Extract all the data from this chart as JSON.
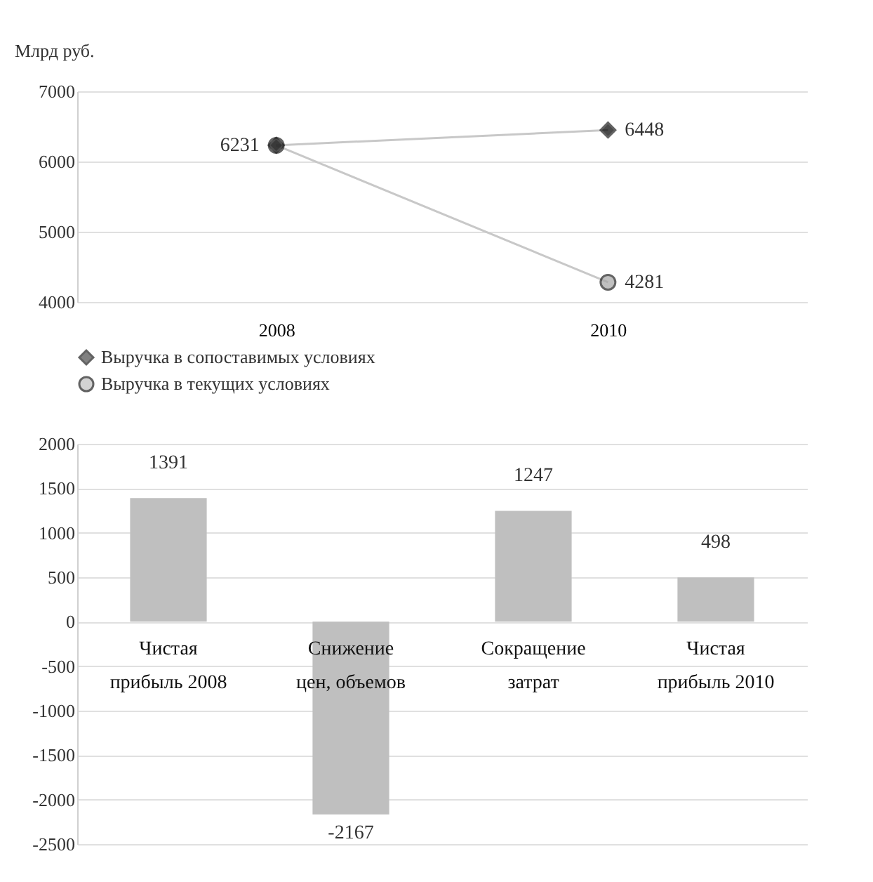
{
  "chart_data": [
    {
      "type": "line",
      "ylabel": "Млрд руб.",
      "categories": [
        "2008",
        "2010"
      ],
      "ylim": [
        4000,
        7000
      ],
      "yticks": [
        4000,
        5000,
        6000,
        7000
      ],
      "grid": "y",
      "legend": "bottom",
      "series": [
        {
          "name": "Выручка в сопоставимых условиях",
          "color": "#000000",
          "marker": "diamond",
          "values": [
            6231,
            6448
          ],
          "value_labels": [
            null,
            "6448"
          ]
        },
        {
          "name": "Выручка в текущих условиях",
          "color": "#a6a6a6",
          "marker": "circle",
          "values": [
            6231,
            4281
          ],
          "value_labels": [
            "6231",
            "4281"
          ]
        }
      ]
    },
    {
      "type": "bar",
      "categories": [
        "Чистая прибыль 2008",
        "Снижение цен, объемов",
        "Сокращение затрат",
        "Чистая прибыль 2010"
      ],
      "values": [
        1391,
        -2167,
        1247,
        498
      ],
      "color": "#bfbfbf",
      "ylim": [
        -2500,
        2000
      ],
      "yticks": [
        -2500,
        -2000,
        -1500,
        -1000,
        -500,
        0,
        500,
        1000,
        1500,
        2000
      ],
      "grid": "y",
      "data_labels": true
    }
  ]
}
